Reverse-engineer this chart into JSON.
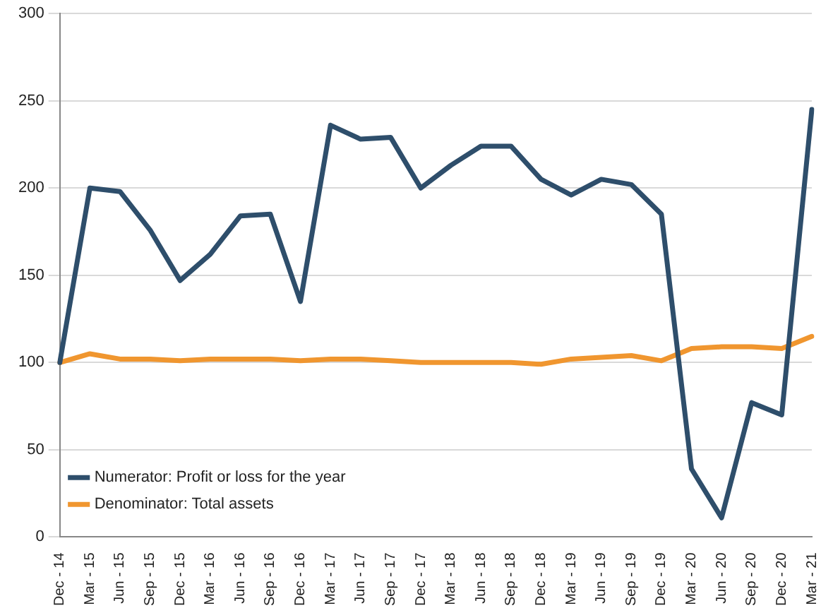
{
  "chart_data": {
    "type": "line",
    "categories": [
      "Dec - 14",
      "Mar - 15",
      "Jun - 15",
      "Sep - 15",
      "Dec - 15",
      "Mar - 16",
      "Jun - 16",
      "Sep - 16",
      "Dec - 16",
      "Mar - 17",
      "Jun - 17",
      "Sep - 17",
      "Dec - 17",
      "Mar - 18",
      "Jun - 18",
      "Sep - 18",
      "Dec - 18",
      "Mar - 19",
      "Jun - 19",
      "Sep - 19",
      "Dec - 19",
      "Mar - 20",
      "Jun - 20",
      "Sep - 20",
      "Dec - 20",
      "Mar - 21"
    ],
    "series": [
      {
        "name": "Numerator: Profit or loss for the year",
        "color": "#2e4e6b",
        "values": [
          100,
          200,
          198,
          176,
          147,
          162,
          184,
          185,
          135,
          236,
          228,
          229,
          200,
          213,
          224,
          224,
          205,
          196,
          205,
          202,
          185,
          39,
          11,
          77,
          70,
          245
        ]
      },
      {
        "name": "Denominator: Total assets",
        "color": "#f0962f",
        "values": [
          100,
          105,
          102,
          102,
          101,
          102,
          102,
          102,
          101,
          102,
          102,
          101,
          100,
          100,
          100,
          100,
          99,
          102,
          103,
          104,
          101,
          108,
          109,
          109,
          108,
          115
        ]
      }
    ],
    "ylim": [
      0,
      300
    ],
    "yticks": [
      0,
      50,
      100,
      150,
      200,
      250,
      300
    ],
    "grid": "y",
    "legend": "bottom left",
    "marker": "none",
    "line_style": "solid"
  }
}
